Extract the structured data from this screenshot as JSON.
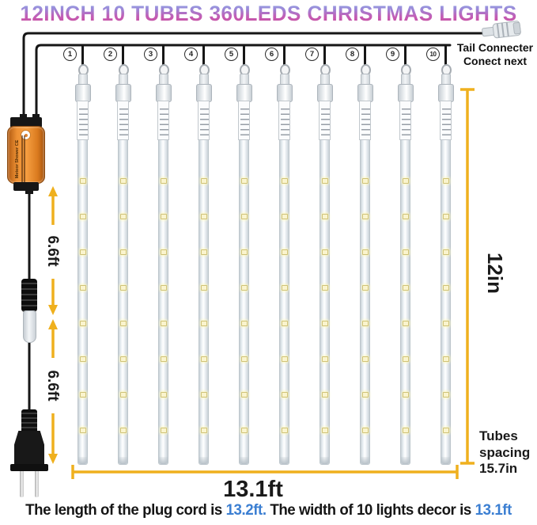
{
  "title": "12INCH 10 TUBES 360LEDS CHRISTMAS LIGHTS",
  "tail_connector": {
    "line1": "Tail Connecter",
    "line2": "Conect next"
  },
  "tubes": {
    "count": 10,
    "numbers": [
      "1",
      "2",
      "3",
      "4",
      "5",
      "6",
      "7",
      "8",
      "9",
      "10"
    ]
  },
  "adapter": {
    "label": "Meteor Shower CE"
  },
  "measurements": {
    "cord_segment_1": "6.6ft",
    "cord_segment_2": "6.6ft",
    "tube_length": "12in",
    "total_width": "13.1ft",
    "spacing_line1": "Tubes",
    "spacing_line2": "spacing",
    "spacing_line3": "15.7in"
  },
  "caption": {
    "text1": "The length of the plug cord is ",
    "highlight1": "13.2ft.",
    "text2": " The width of 10 lights decor is ",
    "highlight2": "13.1ft"
  },
  "colors": {
    "accent_yellow": "#efb01e",
    "highlight_blue": "#3c7fd2",
    "adapter_orange": "#e6822b",
    "title_gradient_top": "#8fa9e8",
    "title_gradient_bottom": "#c84f9e"
  }
}
